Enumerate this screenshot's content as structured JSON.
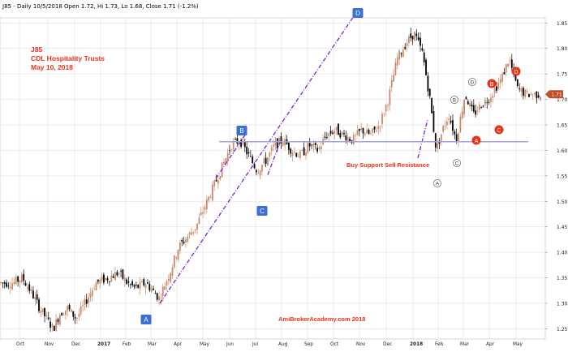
{
  "header": {
    "quote_line": "J85 - Daily 10/5/2018 Open 1.72, Hi 1.73, Lo 1.68, Close 1.71 (-1.2%)"
  },
  "title_block": {
    "symbol": "J85",
    "name": "CDL Hospitality Trusts",
    "date": "May 10, 2018"
  },
  "annotations": {
    "support_resistance": "Buy Support Sell Resistance",
    "watermark": "AmiBrokerAcademy.com 2018"
  },
  "colors": {
    "up_candle": "#c98a6a",
    "down_candle": "#000000",
    "trendline": "#7b1fd6",
    "support_line": "#a9a4d6",
    "label_box": "#3b6fd6",
    "label_red": "#e8321c",
    "price_tag": "#c0502a",
    "grid": "#e4e4e4"
  },
  "chart_data": {
    "type": "candlestick",
    "y_axis": {
      "range": [
        1.23,
        1.86
      ],
      "tick_labels": [
        "1.25",
        "1.30",
        "1.35",
        "1.40",
        "1.45",
        "1.50",
        "1.55",
        "1.60",
        "1.65",
        "1.70",
        "1.75",
        "1.80",
        "1.85"
      ],
      "position": "right"
    },
    "x_axis": {
      "tick_labels": [
        "Oct",
        "Nov",
        "Dec",
        "2017",
        "Feb",
        "Mar",
        "Apr",
        "May",
        "Jun",
        "Jul",
        "Aug",
        "Sep",
        "Oct",
        "Nov",
        "Dec",
        "2018",
        "Feb",
        "Mar",
        "Apr",
        "May"
      ]
    },
    "grid": true,
    "last_price_tag": "1.71",
    "price_path": [
      [
        "Oct",
        1.34
      ],
      [
        "Oct",
        1.35
      ],
      [
        "Oct",
        1.32
      ],
      [
        "Nov",
        1.29
      ],
      [
        "Nov",
        1.27
      ],
      [
        "Nov",
        1.25
      ],
      [
        "Nov",
        1.28
      ],
      [
        "Dec",
        1.29
      ],
      [
        "Dec",
        1.27
      ],
      [
        "Dec",
        1.3
      ],
      [
        "2017",
        1.34
      ],
      [
        "2017",
        1.35
      ],
      [
        "Feb",
        1.36
      ],
      [
        "Feb",
        1.34
      ],
      [
        "Feb",
        1.33
      ],
      [
        "Mar",
        1.34
      ],
      [
        "Mar",
        1.31
      ],
      [
        "Apr",
        1.36
      ],
      [
        "Apr",
        1.41
      ],
      [
        "Apr",
        1.43
      ],
      [
        "May",
        1.45
      ],
      [
        "May",
        1.49
      ],
      [
        "May",
        1.53
      ],
      [
        "Jun",
        1.57
      ],
      [
        "Jun",
        1.61
      ],
      [
        "Jun",
        1.62
      ],
      [
        "Jul",
        1.59
      ],
      [
        "Jul",
        1.56
      ],
      [
        "Jul",
        1.58
      ],
      [
        "Aug",
        1.61
      ],
      [
        "Aug",
        1.62
      ],
      [
        "Aug",
        1.6
      ],
      [
        "Sep",
        1.59
      ],
      [
        "Sep",
        1.61
      ],
      [
        "Sep",
        1.6
      ],
      [
        "Oct",
        1.63
      ],
      [
        "Oct",
        1.64
      ],
      [
        "Oct",
        1.63
      ],
      [
        "Nov",
        1.62
      ],
      [
        "Nov",
        1.64
      ],
      [
        "Nov",
        1.63
      ],
      [
        "Dec",
        1.65
      ],
      [
        "Dec",
        1.7
      ],
      [
        "Dec",
        1.78
      ],
      [
        "2018",
        1.81
      ],
      [
        "2018",
        1.83
      ],
      [
        "2018",
        1.79
      ],
      [
        "Feb",
        1.7
      ],
      [
        "Feb",
        1.6
      ],
      [
        "Feb",
        1.64
      ],
      [
        "Feb",
        1.67
      ],
      [
        "Mar",
        1.62
      ],
      [
        "Mar",
        1.71
      ],
      [
        "Mar",
        1.67
      ],
      [
        "Apr",
        1.69
      ],
      [
        "Apr",
        1.7
      ],
      [
        "Apr",
        1.72
      ],
      [
        "Apr",
        1.74
      ],
      [
        "May",
        1.78
      ],
      [
        "May",
        1.72
      ],
      [
        "May",
        1.71
      ]
    ],
    "trendlines": [
      {
        "kind": "up-trend",
        "from": [
          "Mar",
          1.3
        ],
        "to": [
          "Oct",
          1.87
        ]
      },
      {
        "kind": "up-trend",
        "from": [
          "Jun",
          1.55
        ],
        "to": [
          "Jun",
          1.63
        ]
      },
      {
        "kind": "up-trend",
        "from": [
          "Jul",
          1.55
        ],
        "to": [
          "Aug",
          1.62
        ]
      },
      {
        "kind": "up-trend",
        "from": [
          "Feb",
          1.58
        ],
        "to": [
          "Feb",
          1.66
        ]
      },
      {
        "kind": "support",
        "from": [
          "Jun",
          1.617
        ],
        "to": [
          "May",
          1.617
        ]
      }
    ],
    "point_labels": [
      {
        "text": "A",
        "style": "blue-box",
        "x": "Mar",
        "y": 1.28
      },
      {
        "text": "B",
        "style": "blue-box",
        "x": "Jun",
        "y": 1.665
      },
      {
        "text": "C",
        "style": "blue-box",
        "x": "Jul",
        "y": 1.5
      },
      {
        "text": "D",
        "style": "blue-box",
        "x": "Oct",
        "y": 1.895
      },
      {
        "text": "A",
        "style": "white-circle",
        "x": "Feb",
        "y": 1.535
      },
      {
        "text": "B",
        "style": "white-circle",
        "x": "Feb",
        "y": 1.725
      },
      {
        "text": "C",
        "style": "white-circle",
        "x": "Mar",
        "y": 1.595
      },
      {
        "text": "D",
        "style": "white-circle",
        "x": "Mar",
        "y": 1.765
      },
      {
        "text": "A",
        "style": "red-circle",
        "x": "Mar",
        "y": 1.68
      },
      {
        "text": "B",
        "style": "red-circle",
        "x": "Apr",
        "y": 1.76
      },
      {
        "text": "C",
        "style": "red-circle",
        "x": "Apr",
        "y": 1.655
      },
      {
        "text": "D",
        "style": "red-circle",
        "x": "May",
        "y": 1.785
      }
    ]
  }
}
